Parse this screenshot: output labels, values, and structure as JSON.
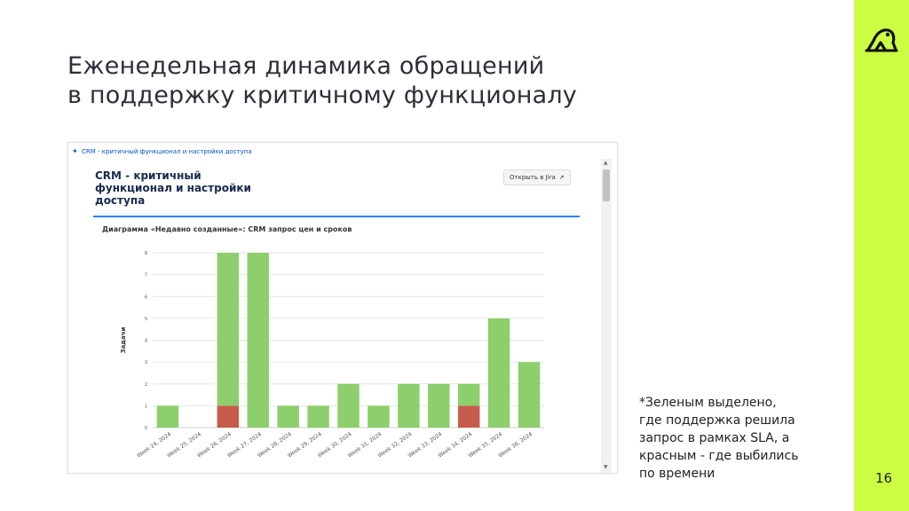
{
  "slide": {
    "title_line1": "Еженедельная динамика обращений",
    "title_line2": "в поддержку критичному функционалу",
    "page_number": "16",
    "note_lines": [
      "*Зеленым выделено,",
      "где поддержка решила",
      "запрос в рамках SLA, а",
      "красным - где выбились",
      "по времени"
    ],
    "accent_color": "#ccff44"
  },
  "gadget": {
    "breadcrumb": "CRM - критичный функционал и настройки доступа",
    "title_lines": [
      "CRM - критичный",
      "функционал и настройки",
      "доступа"
    ],
    "open_button": "Открыть в Jira",
    "caption": "Диаграмма «Недавно созданные»: CRM запрос цен и сроков"
  },
  "chart_data": {
    "type": "bar",
    "stacked": true,
    "ylabel": "Задачи",
    "ylim": [
      0,
      8
    ],
    "yticks": [
      0,
      1,
      2,
      3,
      4,
      5,
      6,
      7,
      8
    ],
    "grid": true,
    "categories": [
      "Week 24, 2024",
      "Week 25, 2024",
      "Week 26, 2024",
      "Week 27, 2024",
      "Week 28, 2024",
      "Week 29, 2024",
      "Week 30, 2024",
      "Week 31, 2024",
      "Week 32, 2024",
      "Week 33, 2024",
      "Week 34, 2024",
      "Week 35, 2024",
      "Week 36, 2024"
    ],
    "series": [
      {
        "color": "#c85c4c",
        "values": [
          0,
          0,
          1,
          0,
          0,
          0,
          0,
          0,
          0,
          0,
          1,
          0,
          0
        ]
      },
      {
        "color": "#8ccf6c",
        "values": [
          1,
          0,
          7,
          8,
          1,
          1,
          2,
          1,
          2,
          2,
          1,
          5,
          3
        ]
      }
    ]
  }
}
